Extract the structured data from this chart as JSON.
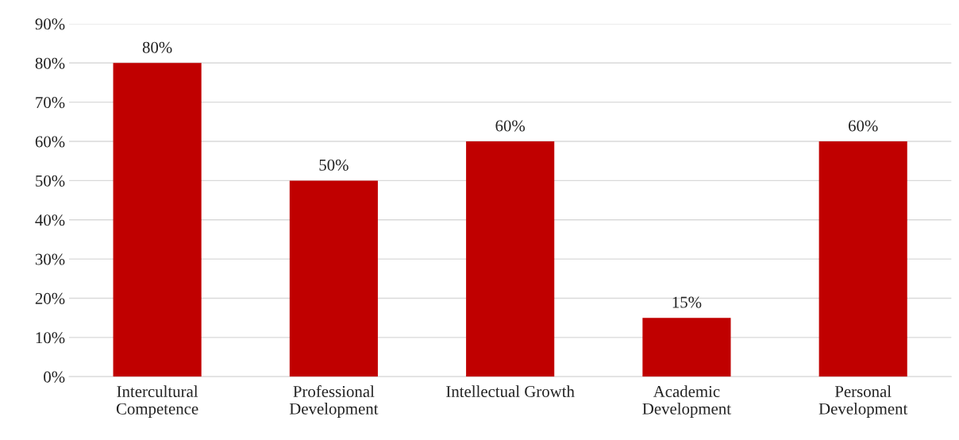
{
  "chart_data": {
    "type": "bar",
    "categories": [
      "Intercultural\nCompetence",
      "Professional\nDevelopment",
      "Intellectual Growth",
      "Academic\nDevelopment",
      "Personal\nDevelopment"
    ],
    "values": [
      80,
      50,
      60,
      15,
      60
    ],
    "value_labels": [
      "80%",
      "50%",
      "60%",
      "15%",
      "60%"
    ],
    "color": "#c00000",
    "ylim": [
      0,
      90
    ],
    "yticks": [
      {
        "value": 0,
        "label": "0%"
      },
      {
        "value": 10,
        "label": "10%"
      },
      {
        "value": 20,
        "label": "20%"
      },
      {
        "value": 30,
        "label": "30%"
      },
      {
        "value": 40,
        "label": "40%"
      },
      {
        "value": 50,
        "label": "50%"
      },
      {
        "value": 60,
        "label": "60%"
      },
      {
        "value": 70,
        "label": "70%"
      },
      {
        "value": 80,
        "label": "80%"
      },
      {
        "value": 90,
        "label": "90%"
      }
    ],
    "grid": "y",
    "legend": false
  }
}
